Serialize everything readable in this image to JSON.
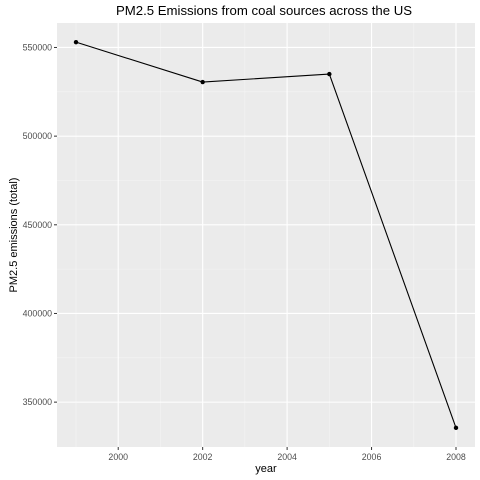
{
  "chart_data": {
    "type": "line",
    "title": "PM2.5 Emissions from coal sources across the US",
    "xlabel": "year",
    "ylabel": "PM2.5 emissions (total)",
    "x": [
      1999,
      2002,
      2005,
      2008
    ],
    "series": [
      {
        "values": [
          553000,
          530500,
          535000,
          335500
        ]
      }
    ],
    "xlim": [
      1998.55,
      2008.45
    ],
    "ylim": [
      324700,
      563800
    ],
    "x_ticks": [
      2000,
      2002,
      2004,
      2006,
      2008
    ],
    "x_tick_labels": [
      "2000",
      "2002",
      "2004",
      "2006",
      "2008"
    ],
    "x_minor_ticks": [
      1999,
      2001,
      2003,
      2005,
      2007
    ],
    "y_ticks": [
      350000,
      400000,
      450000,
      500000,
      550000
    ],
    "y_tick_labels": [
      "350000",
      "400000",
      "450000",
      "500000",
      "550000"
    ],
    "y_minor_ticks": [
      375000,
      425000,
      475000,
      525000
    ],
    "grid": true,
    "legend": "none",
    "colors": {
      "panel_background": "#ebebeb",
      "grid_major": "#ffffff",
      "grid_minor": "#f5f5f5",
      "line": "#000000",
      "point": "#000000",
      "tick_label": "#4d4d4d",
      "tick_mark": "#333333"
    }
  }
}
